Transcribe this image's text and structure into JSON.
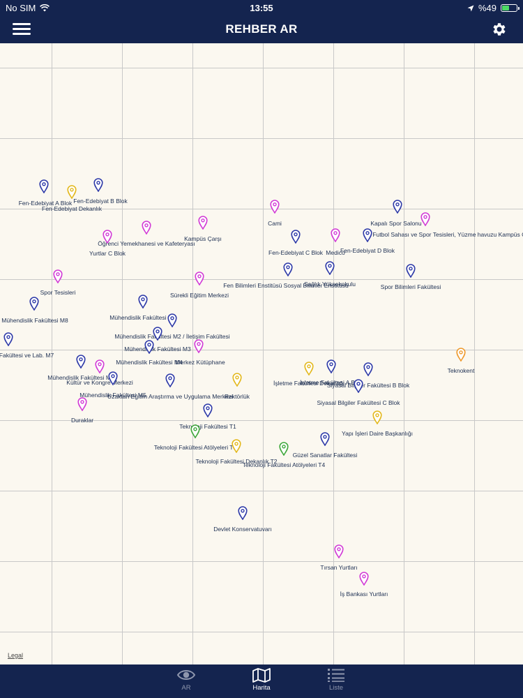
{
  "status_bar": {
    "carrier": "No SIM",
    "time": "13:55",
    "battery": "%49",
    "battery_level": 0.49
  },
  "nav": {
    "title": "REHBER AR",
    "menu_icon": "hamburger-menu-icon",
    "settings_icon": "gear-icon"
  },
  "map": {
    "legal": "Legal",
    "colors": {
      "blue": "#2e3aa8",
      "magenta": "#d23bd6",
      "yellow": "#e3b81c",
      "green": "#3ea83b",
      "orange": "#ee9a2e"
    },
    "markers": [
      {
        "label": "Fen-Edebiyat A Blok",
        "color": "blue"
      },
      {
        "label": "Fen-Edebiyat Dekanlık",
        "color": "yellow"
      },
      {
        "label": "Fen-Edebiyat B Blok",
        "color": "blue"
      },
      {
        "label": "Cami",
        "color": "magenta"
      },
      {
        "label": "Kapalı Spor Salonu",
        "color": "blue"
      },
      {
        "label": "Futbol Sahası ve Spor Tesisleri, Yüzme havuzu Kampüs Giriş",
        "color": "magenta"
      },
      {
        "label": "Kampüs Çarşı",
        "color": "magenta"
      },
      {
        "label": "Öğrenci Yemekhanesi ve Kafeteryası",
        "color": "magenta"
      },
      {
        "label": "Yurtlar C Blok",
        "color": "magenta"
      },
      {
        "label": "Fen-Edebiyat C Blok",
        "color": "blue"
      },
      {
        "label": "Medico",
        "color": "magenta"
      },
      {
        "label": "Fen-Edebiyat D Blok",
        "color": "blue"
      },
      {
        "label": "Spor Tesisleri",
        "color": "magenta"
      },
      {
        "label": "Sürekli Eğitim Merkezi",
        "color": "magenta"
      },
      {
        "label": "Fen Bilimleri Enstitüsü Sosyal Bilimler Enstitüsü",
        "color": "blue"
      },
      {
        "label": "Sağlık Yüksekokulu",
        "color": "blue"
      },
      {
        "label": "Spor Bilimleri Fakültesi",
        "color": "blue"
      },
      {
        "label": "Mühendislik Fakültesi M8",
        "color": "blue"
      },
      {
        "label": "Mühendislik Fakültesi M1",
        "color": "blue"
      },
      {
        "label": "Mühendislik Fakültesi M2 / İletişim Fakültesi",
        "color": "blue"
      },
      {
        "label": "Mühendislik Fakültesi M3",
        "color": "blue"
      },
      {
        "label": "Mühendislik Fakültesi M4",
        "color": "blue"
      },
      {
        "label": "Merkez Kütüphane",
        "color": "magenta"
      },
      {
        "label": "Fakültesi ve Lab. M7",
        "color": "blue"
      },
      {
        "label": "Mühendislik Fakültesi M6",
        "color": "blue"
      },
      {
        "label": "Kültür ve Kongre Merkezi",
        "color": "magenta"
      },
      {
        "label": "Mühendislik Fakültesi M5",
        "color": "blue"
      },
      {
        "label": "Uzaktan Eğitim Araştırma ve Uygulama Merkezi",
        "color": "blue"
      },
      {
        "label": "Rektörlük",
        "color": "yellow"
      },
      {
        "label": "İşletme Fakültesi Dekanlığı",
        "color": "yellow"
      },
      {
        "label": "İşletme Fakültesi A Blok",
        "color": "blue"
      },
      {
        "label": "Siyasal Bilgiler Fakültesi B Blok",
        "color": "blue"
      },
      {
        "label": "Siyasal Bilgiler Fakültesi C Blok",
        "color": "blue"
      },
      {
        "label": "Teknokent",
        "color": "orange"
      },
      {
        "label": "Duraklar",
        "color": "magenta"
      },
      {
        "label": "Teknoloji Fakültesi T1",
        "color": "blue"
      },
      {
        "label": "Yapı İşleri Daire Başkanlığı",
        "color": "yellow"
      },
      {
        "label": "Teknoloji Fakültesi Atölyeleri T3",
        "color": "green"
      },
      {
        "label": "Güzel Sanatlar Fakültesi",
        "color": "blue"
      },
      {
        "label": "Teknoloji Fakültesi Dekanlık T2",
        "color": "yellow"
      },
      {
        "label": "Teknoloji Fakültesi Atölyeleri T4",
        "color": "green"
      },
      {
        "label": "Devlet Konservatuvarı",
        "color": "blue"
      },
      {
        "label": "Tırsan Yurtları",
        "color": "magenta"
      },
      {
        "label": "İş Bankası Yurtları",
        "color": "magenta"
      }
    ]
  },
  "tabs": [
    {
      "label": "AR",
      "icon": "eye-icon",
      "active": false
    },
    {
      "label": "Harita",
      "icon": "map-icon",
      "active": true
    },
    {
      "label": "Liste",
      "icon": "list-icon",
      "active": false
    }
  ]
}
